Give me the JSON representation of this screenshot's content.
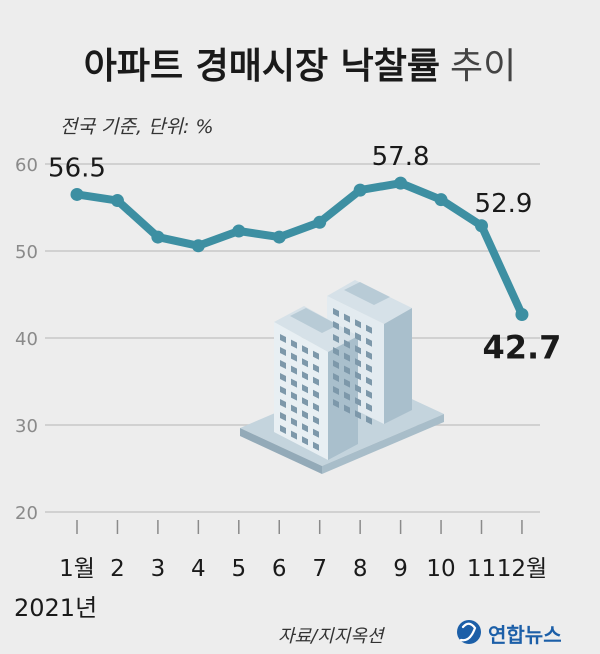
{
  "title_bold": "아파트 경매시장 낙찰률",
  "title_light": "추이",
  "subtitle": "전국 기준, 단위: %",
  "year_label": "2021년",
  "source": "자료/지지옥션",
  "brand": "연합뉴스",
  "colors": {
    "line": "#3d8fa2",
    "grid": "#c8c8c8",
    "text": "#1a1a1a",
    "axis": "#8a8a8a",
    "brand": "#1c5fa8"
  },
  "chart_data": {
    "type": "line",
    "categories": [
      "1월",
      "2",
      "3",
      "4",
      "5",
      "6",
      "7",
      "8",
      "9",
      "10",
      "11",
      "12월"
    ],
    "series": [
      {
        "values": [
          56.5,
          55.8,
          51.6,
          50.6,
          52.3,
          51.6,
          53.3,
          57.0,
          57.8,
          55.9,
          52.9,
          42.7
        ]
      }
    ],
    "ylim": [
      20,
      60
    ],
    "yticks": [
      20,
      30,
      40,
      50,
      60
    ],
    "grid": true,
    "data_labels": [
      {
        "index": 0,
        "text": "56.5"
      },
      {
        "index": 8,
        "text": "57.8"
      },
      {
        "index": 10,
        "text": "52.9"
      },
      {
        "index": 11,
        "text": "42.7"
      }
    ]
  }
}
